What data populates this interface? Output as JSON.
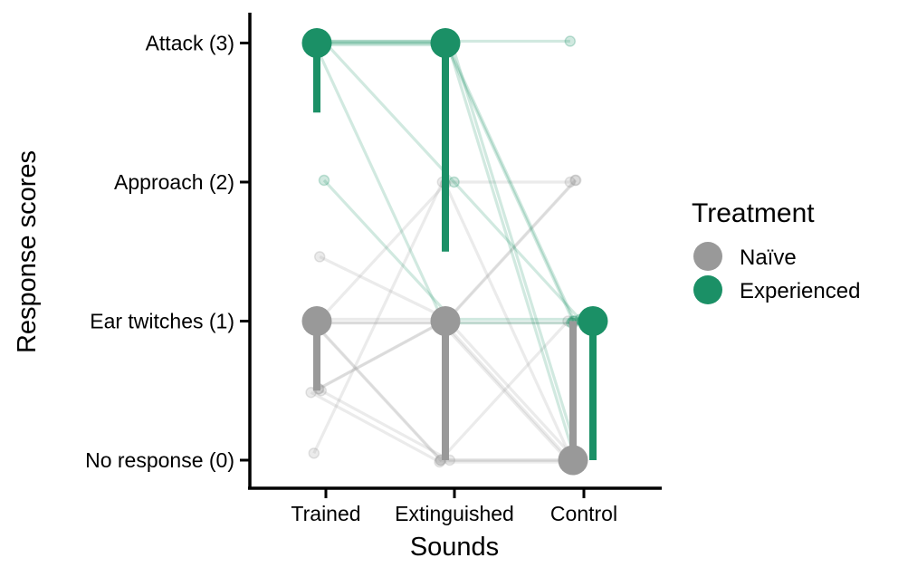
{
  "chart_data": {
    "type": "scatter",
    "title": "",
    "xlabel": "Sounds",
    "ylabel": "Response scores",
    "categories": [
      "Trained",
      "Extinguished",
      "Control"
    ],
    "y_ticks": [
      {
        "value": 0,
        "label": "No response (0)"
      },
      {
        "value": 1,
        "label": "Ear twitches (1)"
      },
      {
        "value": 2,
        "label": "Approach (2)"
      },
      {
        "value": 3,
        "label": "Attack (3)"
      }
    ],
    "ylim": [
      -0.2,
      3.2
    ],
    "grid": false,
    "legend": {
      "title": "Treatment",
      "position": "right",
      "entries": [
        {
          "name": "Naïve",
          "color": "#999999"
        },
        {
          "name": "Experienced",
          "color": "#1b9066"
        }
      ]
    },
    "series": [
      {
        "name": "Naïve",
        "color": "#999999",
        "medians": [
          1,
          1,
          0
        ],
        "bars": [
          [
            0.5,
            1
          ],
          [
            0,
            1
          ],
          [
            0,
            1
          ]
        ],
        "individuals": [
          [
            1,
            1,
            0
          ],
          [
            1,
            0,
            0
          ],
          [
            1,
            1,
            0
          ],
          [
            0.5,
            1,
            0
          ],
          [
            0.5,
            0,
            0
          ],
          [
            0.5,
            0,
            0
          ],
          [
            1.45,
            1,
            2
          ],
          [
            0.05,
            2,
            2
          ],
          [
            1,
            2,
            0
          ],
          [
            0.5,
            1,
            2
          ],
          [
            1,
            0,
            1
          ],
          [
            1,
            1,
            1
          ]
        ]
      },
      {
        "name": "Experienced",
        "color": "#1b9066",
        "medians": [
          3,
          3,
          1
        ],
        "bars": [
          [
            2.5,
            3
          ],
          [
            1.5,
            3
          ],
          [
            0,
            1
          ]
        ],
        "individuals": [
          [
            3,
            3,
            3
          ],
          [
            3,
            3,
            1
          ],
          [
            3,
            3,
            0
          ],
          [
            3,
            3,
            0
          ],
          [
            3,
            2,
            1
          ],
          [
            3,
            1,
            1
          ],
          [
            2,
            1,
            1
          ],
          [
            3,
            3,
            1
          ]
        ]
      }
    ]
  }
}
